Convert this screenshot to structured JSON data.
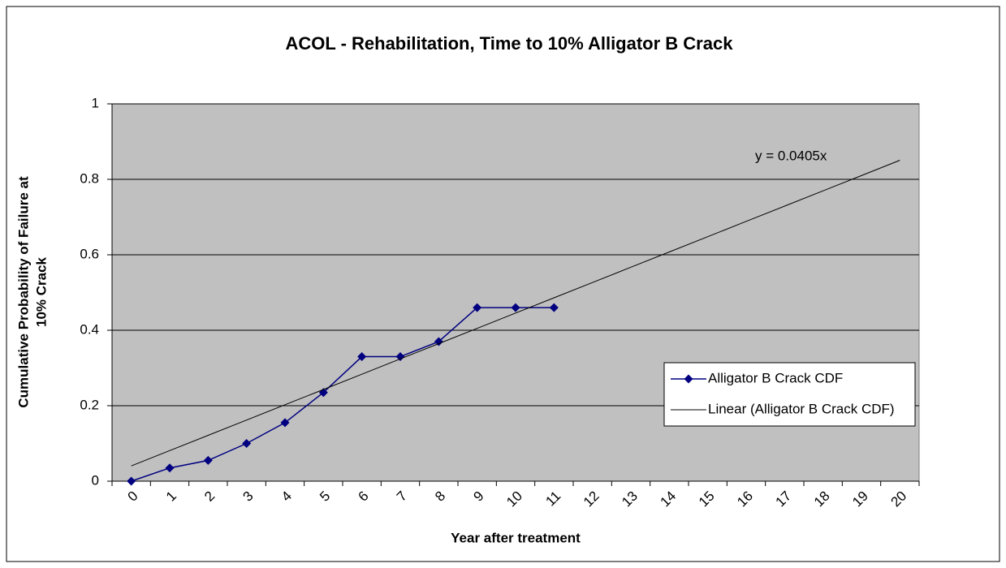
{
  "chart_data": {
    "type": "line",
    "title": "ACOL - Rehabilitation, Time to 10% Alligator B Crack",
    "xlabel": "Year after treatment",
    "ylabel": [
      "Cumulative Probability of Failure at",
      "10% Crack"
    ],
    "annotation": "y = 0.0405x",
    "categories": [
      "0",
      "1",
      "2",
      "3",
      "4",
      "5",
      "6",
      "7",
      "8",
      "9",
      "10",
      "11",
      "12",
      "13",
      "14",
      "15",
      "16",
      "17",
      "18",
      "19",
      "20"
    ],
    "series": [
      {
        "name": "Alligator B Crack CDF",
        "color": "#000080",
        "marker": "diamond",
        "values": [
          0,
          0.035,
          0.055,
          0.1,
          0.155,
          0.235,
          0.33,
          0.33,
          0.37,
          0.46,
          0.46,
          0.46,
          null,
          null,
          null,
          null,
          null,
          null,
          null,
          null,
          null
        ]
      },
      {
        "name": "Linear (Alligator B Crack CDF)",
        "color": "#000000",
        "marker": "none",
        "values": [
          0.0405,
          0.081,
          0.1215,
          0.162,
          0.2025,
          0.243,
          0.2835,
          0.324,
          0.3645,
          0.405,
          0.4455,
          0.486,
          0.5265,
          0.567,
          0.6075,
          0.648,
          0.6885,
          0.729,
          0.7695,
          0.81,
          0.8505
        ]
      }
    ],
    "ylim": [
      0,
      1
    ],
    "yticks": [
      0,
      0.2,
      0.4,
      0.6,
      0.8,
      1
    ],
    "grid": true,
    "plot_background": "#c0c0c0",
    "legend": "right"
  }
}
